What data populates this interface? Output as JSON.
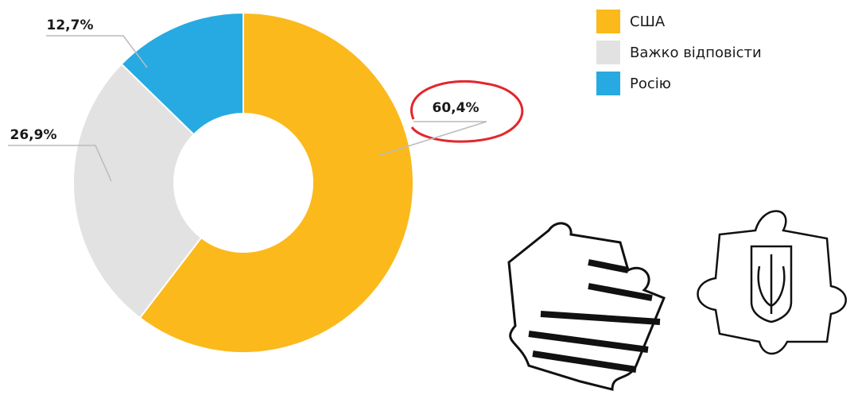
{
  "chart_data": {
    "type": "pie",
    "categories": [
      "США",
      "Важко відповісти",
      "Росію"
    ],
    "values": [
      60.4,
      26.9,
      12.7
    ],
    "value_labels": [
      "60,4%",
      "26,9%",
      "12,7%"
    ],
    "colors": [
      "#fbb91c",
      "#e2e2e3",
      "#27aae1"
    ],
    "hole": true
  }
}
